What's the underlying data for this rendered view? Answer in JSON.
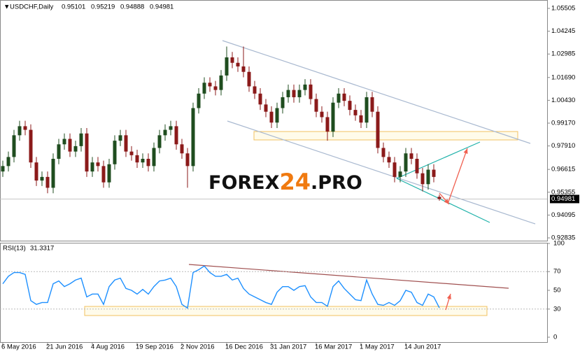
{
  "chart_data": [
    {
      "type": "candlestick",
      "title": "USDCHF,Daily",
      "open": [
        0.965,
        0.968,
        0.973,
        0.985,
        0.99,
        0.988,
        0.97,
        0.96,
        0.962,
        0.956,
        0.972,
        0.98,
        0.983,
        0.976,
        0.979,
        0.986,
        0.965,
        0.97,
        0.968,
        0.959,
        0.969,
        0.982,
        0.985,
        0.976,
        0.974,
        0.97,
        0.972,
        0.968,
        0.978,
        0.985,
        0.988,
        0.99,
        0.98,
        0.975,
        0.968,
        1.0,
        1.008,
        1.014,
        1.012,
        1.01,
        1.018,
        1.028,
        1.025,
        1.023,
        1.02,
        1.012,
        1.008,
        1.002,
        0.998,
        0.992,
        1.0,
        1.006,
        1.01,
        1.006,
        1.01,
        1.013,
        1.005,
        0.998,
        0.995,
        0.987,
        1.003,
        1.008,
        1.004,
        0.999,
        0.996,
        0.992,
        1.006,
        0.998,
        0.978,
        0.973,
        0.97,
        0.962,
        0.965,
        0.975,
        0.972,
        0.964,
        0.958,
        0.966,
        0.95101
      ],
      "high": [
        0.971,
        0.976,
        0.988,
        0.993,
        0.993,
        0.991,
        0.973,
        0.965,
        0.965,
        0.975,
        0.983,
        0.986,
        0.986,
        0.982,
        0.989,
        0.989,
        0.973,
        0.973,
        0.971,
        0.972,
        0.985,
        0.988,
        0.988,
        0.979,
        0.977,
        0.975,
        0.975,
        0.981,
        0.988,
        0.991,
        0.993,
        0.993,
        0.983,
        0.978,
        1.003,
        1.011,
        1.017,
        1.017,
        1.015,
        1.021,
        1.034,
        1.031,
        1.028,
        1.034,
        1.023,
        1.015,
        1.011,
        1.005,
        1.001,
        1.003,
        1.009,
        1.013,
        1.013,
        1.013,
        1.016,
        1.016,
        1.008,
        1.001,
        0.998,
        1.006,
        1.011,
        1.011,
        1.007,
        1.002,
        0.999,
        1.009,
        1.009,
        1.001,
        0.981,
        0.976,
        0.973,
        0.968,
        0.978,
        0.978,
        0.975,
        0.967,
        0.969,
        0.969,
        0.95219
      ],
      "low": [
        0.962,
        0.965,
        0.97,
        0.982,
        0.985,
        0.967,
        0.957,
        0.957,
        0.953,
        0.953,
        0.969,
        0.977,
        0.973,
        0.973,
        0.976,
        0.962,
        0.962,
        0.965,
        0.956,
        0.956,
        0.966,
        0.979,
        0.973,
        0.971,
        0.967,
        0.967,
        0.965,
        0.965,
        0.975,
        0.982,
        0.985,
        0.977,
        0.972,
        0.956,
        0.965,
        0.997,
        1.005,
        1.009,
        1.007,
        1.007,
        1.015,
        1.022,
        1.02,
        1.017,
        1.009,
        1.005,
        0.999,
        0.995,
        0.989,
        0.989,
        0.997,
        1.003,
        1.003,
        1.003,
        1.007,
        1.002,
        0.995,
        0.992,
        0.982,
        0.984,
        1.0,
        1.001,
        0.996,
        0.993,
        0.989,
        0.989,
        0.995,
        0.975,
        0.97,
        0.967,
        0.959,
        0.959,
        0.962,
        0.969,
        0.961,
        0.954,
        0.955,
        0.959,
        0.94888
      ],
      "close": [
        0.968,
        0.973,
        0.985,
        0.99,
        0.988,
        0.97,
        0.96,
        0.962,
        0.956,
        0.972,
        0.98,
        0.983,
        0.976,
        0.979,
        0.986,
        0.965,
        0.97,
        0.968,
        0.959,
        0.969,
        0.982,
        0.985,
        0.976,
        0.974,
        0.97,
        0.972,
        0.968,
        0.978,
        0.985,
        0.988,
        0.99,
        0.98,
        0.975,
        0.968,
        1.0,
        1.008,
        1.014,
        1.012,
        1.01,
        1.018,
        1.028,
        1.025,
        1.023,
        1.02,
        1.012,
        1.008,
        1.002,
        0.998,
        0.992,
        1.0,
        1.006,
        1.01,
        1.006,
        1.01,
        1.013,
        1.005,
        0.998,
        0.995,
        0.987,
        1.003,
        1.008,
        1.004,
        0.999,
        0.996,
        0.992,
        1.006,
        0.998,
        0.978,
        0.973,
        0.97,
        0.962,
        0.965,
        0.975,
        0.972,
        0.964,
        0.958,
        0.966,
        0.962,
        0.94981
      ],
      "up_color": "#1f4d1f",
      "down_color": "#8b1a1a",
      "ylim": [
        0.9272,
        1.0589
      ],
      "yticks": [
        1.05505,
        1.04245,
        1.02985,
        {
          "value": 1.0169,
          "label": "1.01690"
        },
        {
          "value": 1.0043,
          "label": "1.00430"
        },
        {
          "value": 0.9917,
          "label": "0.99170"
        },
        {
          "value": 0.9791,
          "label": "0.97910"
        },
        0.96615,
        0.95355,
        0.94095,
        0.92835
      ],
      "watermark": [
        "FOREX",
        "24",
        ".PRO"
      ]
    },
    {
      "type": "line",
      "title": "RSI(13)",
      "categories": [
        "6 May 2016",
        null,
        null,
        null,
        null,
        null,
        null,
        null,
        "21 Jun 2016",
        null,
        null,
        null,
        null,
        null,
        null,
        null,
        "4 Aug 2016",
        null,
        null,
        null,
        null,
        null,
        null,
        null,
        "19 Sep 2016",
        null,
        null,
        null,
        null,
        null,
        null,
        null,
        "2 Nov 2016",
        null,
        null,
        null,
        null,
        null,
        null,
        null,
        "16 Dec 2016",
        null,
        null,
        null,
        null,
        null,
        null,
        null,
        "31 Jan 2017",
        null,
        null,
        null,
        null,
        null,
        null,
        null,
        "16 Mar 2017",
        null,
        null,
        null,
        null,
        null,
        null,
        null,
        "1 May 2017",
        null,
        null,
        null,
        null,
        null,
        null,
        null,
        "14 Jun 2017",
        null,
        null,
        null,
        null,
        null,
        null
      ],
      "values": [
        57,
        65,
        69,
        69,
        67,
        39,
        35,
        37,
        37,
        57,
        60,
        54,
        57,
        61,
        63,
        43,
        46,
        46,
        35,
        54,
        61,
        63,
        52,
        50,
        46,
        51,
        46,
        54,
        60,
        61,
        63,
        54,
        35,
        31,
        69,
        72,
        76,
        69,
        65,
        65,
        67,
        61,
        63,
        52,
        46,
        43,
        40,
        37,
        35,
        48,
        54,
        54,
        50,
        54,
        55,
        43,
        37,
        37,
        33,
        54,
        60,
        52,
        46,
        40,
        39,
        61,
        46,
        35,
        34,
        37,
        34,
        39,
        50,
        48,
        37,
        34,
        46,
        43,
        31.3317
      ],
      "color": "#1e90ff",
      "ylim": [
        0,
        100
      ],
      "yticks": [
        100,
        70,
        50,
        30,
        0
      ],
      "levels": [
        70,
        30
      ]
    }
  ]
}
